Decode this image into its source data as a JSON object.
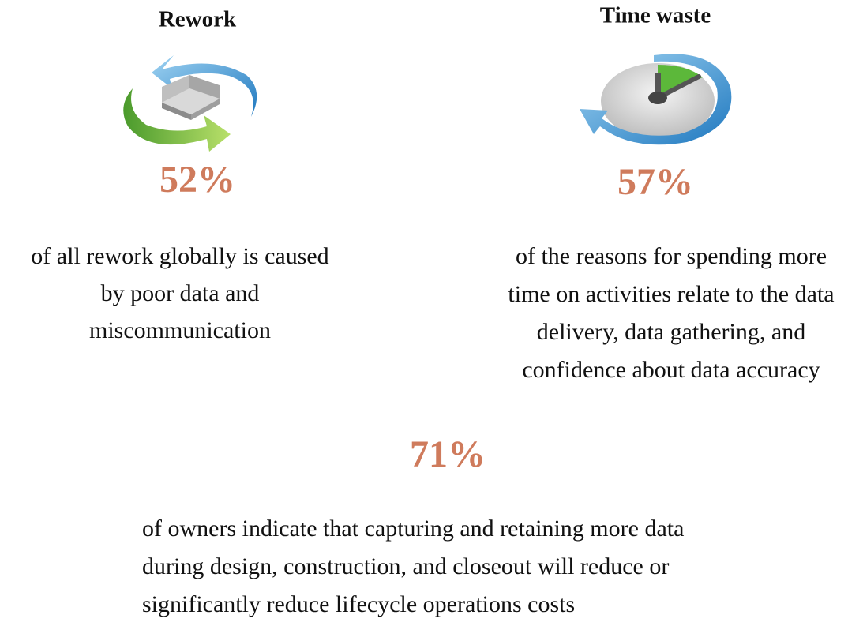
{
  "items": [
    {
      "title": "Rework",
      "stat": "52%",
      "description": [
        "of all rework globally is caused",
        "by poor data and",
        "miscommunication"
      ]
    },
    {
      "title": "Time waste",
      "stat": "57%",
      "description": [
        "of the reasons for spending more",
        "time on activities relate to the data",
        "delivery, data gathering, and",
        "confidence about data accuracy"
      ]
    },
    {
      "stat": "71%",
      "description": [
        "of owners indicate that capturing and retaining more data",
        "during design, construction, and closeout will reduce or",
        "significantly reduce lifecycle operations costs"
      ]
    }
  ]
}
